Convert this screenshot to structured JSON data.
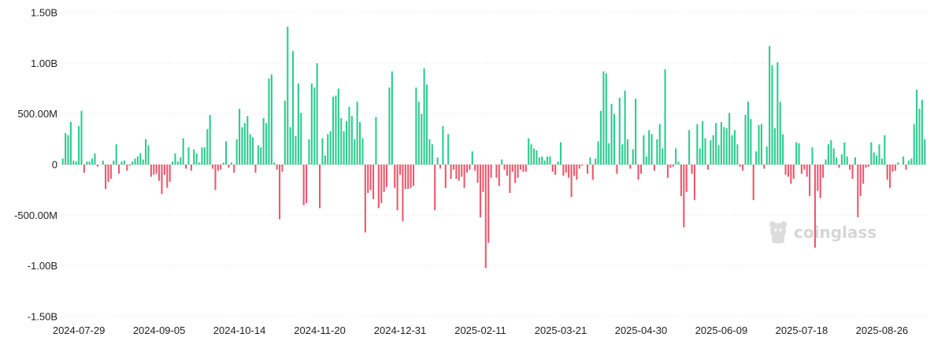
{
  "watermark": {
    "text": "coinglass",
    "icon": "coinglass-logo-icon"
  },
  "chart_data": {
    "type": "bar",
    "title": "",
    "xlabel": "",
    "ylabel": "",
    "ylim": [
      -1500000000.0,
      1500000000.0
    ],
    "y_ticks": [
      {
        "value": 1500000000.0,
        "label": "1.50B"
      },
      {
        "value": 1000000000.0,
        "label": "1.00B"
      },
      {
        "value": 500000000.0,
        "label": "500.00M"
      },
      {
        "value": 0,
        "label": "0"
      },
      {
        "value": -500000000.0,
        "label": "-500.00M"
      },
      {
        "value": -1000000000.0,
        "label": "-1.00B"
      },
      {
        "value": -1500000000.0,
        "label": "-1.50B"
      }
    ],
    "x_tick_labels": [
      "2024-07-29",
      "2024-09-05",
      "2024-10-14",
      "2024-11-20",
      "2024-12-31",
      "2025-02-11",
      "2025-03-21",
      "2025-04-30",
      "2025-06-09",
      "2025-07-18",
      "2025-08-26"
    ],
    "x_tick_index": [
      6,
      36,
      66,
      96,
      126,
      156,
      186,
      216,
      246,
      276,
      306
    ],
    "grid": true,
    "legend": "none",
    "colors": {
      "positive": "#2ecc8f",
      "negative": "#ea5a6f"
    },
    "series": [
      {
        "values": [
          60000000,
          310000000,
          290000000,
          420000000,
          40000000,
          30000000,
          380000000,
          530000000,
          -80000000,
          30000000,
          30000000,
          60000000,
          110000000,
          -20000000,
          0,
          40000000,
          -240000000,
          -170000000,
          -140000000,
          40000000,
          200000000,
          -90000000,
          30000000,
          40000000,
          -60000000,
          -10000000,
          30000000,
          60000000,
          80000000,
          110000000,
          50000000,
          250000000,
          190000000,
          -120000000,
          -100000000,
          -90000000,
          -160000000,
          -290000000,
          -100000000,
          -230000000,
          -170000000,
          30000000,
          110000000,
          30000000,
          70000000,
          260000000,
          -40000000,
          170000000,
          -60000000,
          150000000,
          110000000,
          20000000,
          170000000,
          170000000,
          350000000,
          490000000,
          -40000000,
          -250000000,
          -60000000,
          -50000000,
          20000000,
          230000000,
          -30000000,
          20000000,
          -80000000,
          250000000,
          550000000,
          370000000,
          410000000,
          480000000,
          300000000,
          270000000,
          -80000000,
          190000000,
          170000000,
          460000000,
          410000000,
          850000000,
          890000000,
          20000000,
          -50000000,
          -540000000,
          -70000000,
          630000000,
          1360000000,
          370000000,
          1120000000,
          280000000,
          800000000,
          510000000,
          -400000000,
          -380000000,
          250000000,
          800000000,
          760000000,
          1000000000,
          -430000000,
          260000000,
          90000000,
          300000000,
          330000000,
          670000000,
          680000000,
          750000000,
          460000000,
          330000000,
          430000000,
          570000000,
          480000000,
          250000000,
          620000000,
          420000000,
          260000000,
          -670000000,
          -280000000,
          -250000000,
          -340000000,
          470000000,
          -430000000,
          -380000000,
          -270000000,
          -220000000,
          760000000,
          920000000,
          -230000000,
          -450000000,
          -100000000,
          -560000000,
          -240000000,
          -240000000,
          -230000000,
          -210000000,
          760000000,
          620000000,
          500000000,
          950000000,
          790000000,
          250000000,
          200000000,
          -450000000,
          70000000,
          -40000000,
          380000000,
          -230000000,
          300000000,
          -140000000,
          -50000000,
          -140000000,
          -160000000,
          -120000000,
          -230000000,
          -80000000,
          -50000000,
          130000000,
          -60000000,
          -180000000,
          -520000000,
          -270000000,
          -1020000000,
          -770000000,
          -130000000,
          0,
          -130000000,
          -210000000,
          50000000,
          -50000000,
          -110000000,
          -280000000,
          -70000000,
          -180000000,
          -130000000,
          -50000000,
          -70000000,
          -70000000,
          260000000,
          200000000,
          160000000,
          140000000,
          70000000,
          80000000,
          40000000,
          80000000,
          80000000,
          -70000000,
          -100000000,
          30000000,
          220000000,
          -110000000,
          -80000000,
          -130000000,
          -320000000,
          -110000000,
          -150000000,
          -40000000,
          -10000000,
          0,
          -90000000,
          70000000,
          -150000000,
          60000000,
          230000000,
          530000000,
          920000000,
          900000000,
          210000000,
          600000000,
          500000000,
          -90000000,
          660000000,
          200000000,
          730000000,
          250000000,
          -40000000,
          150000000,
          650000000,
          -150000000,
          -90000000,
          290000000,
          80000000,
          340000000,
          300000000,
          -60000000,
          250000000,
          400000000,
          160000000,
          940000000,
          -130000000,
          -30000000,
          -20000000,
          160000000,
          30000000,
          -310000000,
          -620000000,
          -270000000,
          340000000,
          -90000000,
          -350000000,
          400000000,
          160000000,
          430000000,
          260000000,
          -50000000,
          240000000,
          290000000,
          410000000,
          190000000,
          420000000,
          370000000,
          360000000,
          510000000,
          290000000,
          340000000,
          200000000,
          -20000000,
          -60000000,
          490000000,
          620000000,
          450000000,
          -350000000,
          130000000,
          390000000,
          400000000,
          -40000000,
          180000000,
          1170000000,
          980000000,
          360000000,
          1010000000,
          620000000,
          300000000,
          -100000000,
          -120000000,
          -190000000,
          -140000000,
          220000000,
          210000000,
          -90000000,
          -50000000,
          -120000000,
          -310000000,
          170000000,
          -820000000,
          -260000000,
          -330000000,
          -130000000,
          50000000,
          200000000,
          240000000,
          160000000,
          70000000,
          -30000000,
          100000000,
          220000000,
          80000000,
          -50000000,
          -140000000,
          70000000,
          -520000000,
          -310000000,
          -190000000,
          -30000000,
          -20000000,
          220000000,
          120000000,
          90000000,
          200000000,
          60000000,
          290000000,
          -150000000,
          -230000000,
          -70000000,
          -60000000,
          20000000,
          0,
          80000000,
          -50000000,
          40000000,
          60000000,
          400000000,
          740000000,
          550000000,
          640000000,
          250000000
        ]
      }
    ]
  }
}
